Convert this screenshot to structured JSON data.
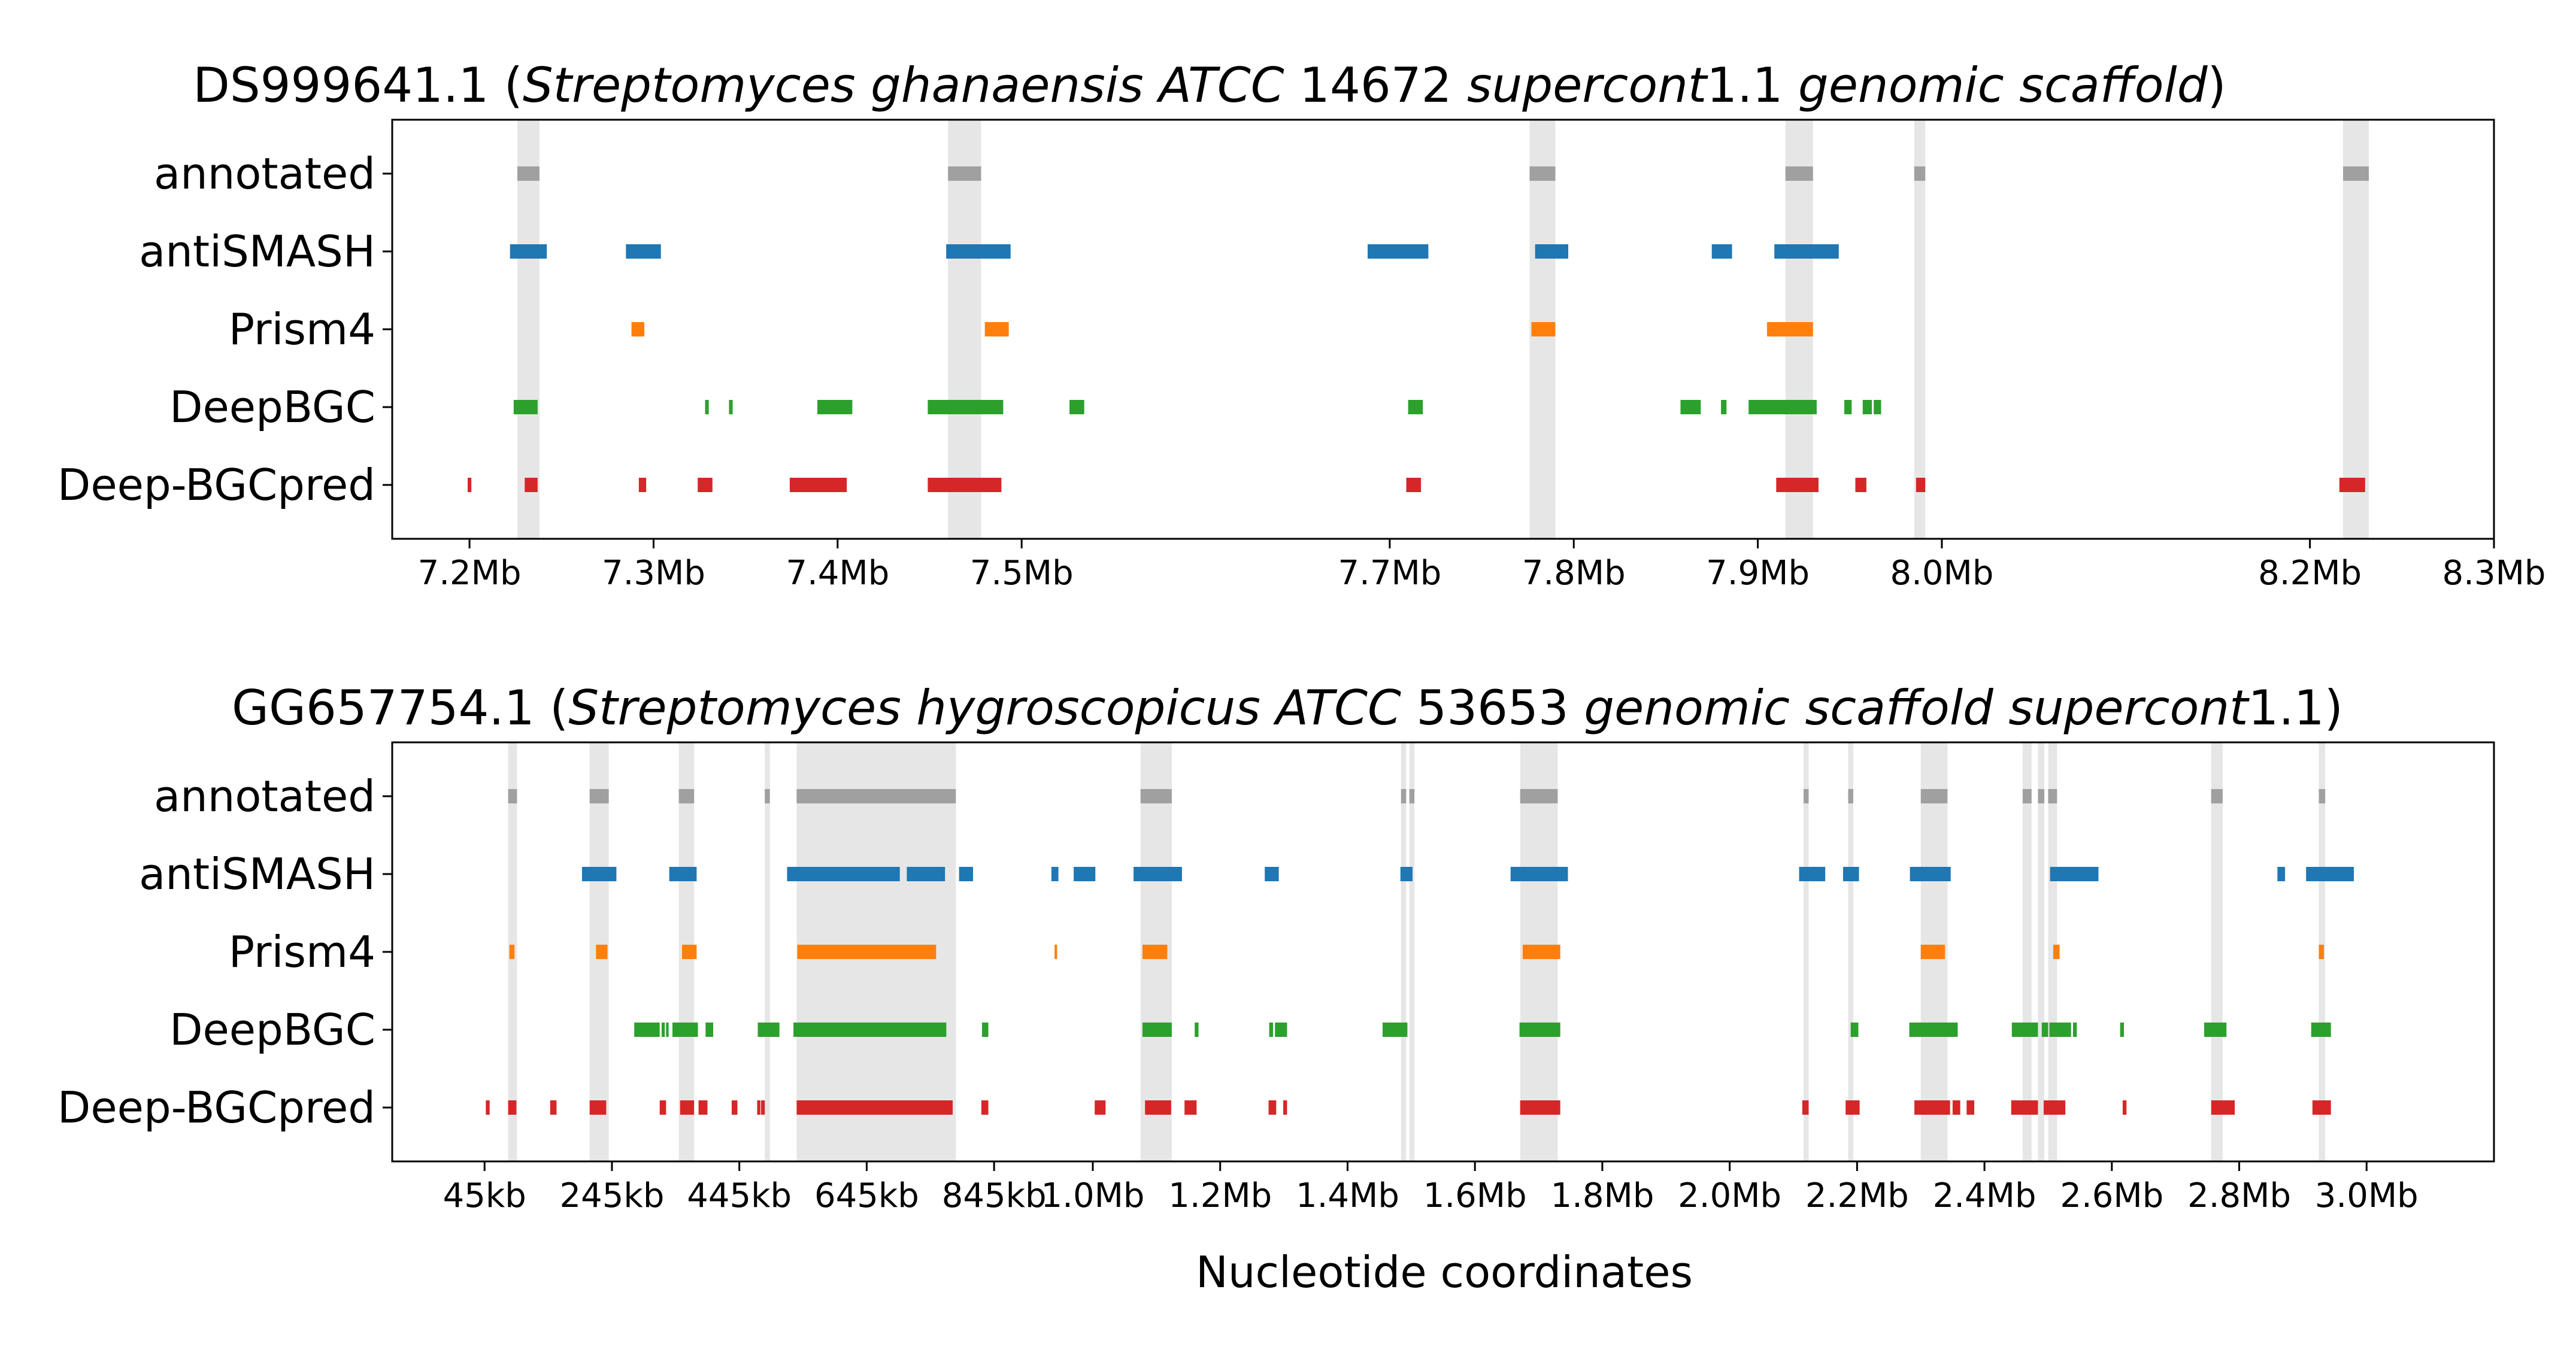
{
  "colors": {
    "annotated": "#a0a0a0",
    "antiSMASH": "#1f77b4",
    "Prism4": "#ff7f0e",
    "DeepBGC": "#2ca02c",
    "Deep-BGCpred": "#d62728",
    "highlight": "#e6e6e6"
  },
  "chart_data": [
    {
      "type": "broken_barh",
      "title": {
        "id": "DS999641.1",
        "paren_open": " (",
        "species": "Streptomyces ghanaensis ATCC",
        "number": " 14672 ",
        "scaffold": "supercont",
        "version": "1.1 ",
        "rest": "genomic scaffold",
        "paren_close": ")"
      },
      "tracks": [
        "annotated",
        "antiSMASH",
        "Prism4",
        "DeepBGC",
        "Deep-BGCpred"
      ],
      "xlim": [
        7158000,
        8300000
      ],
      "xticks": [
        {
          "value": 7200000,
          "label": "7.2Mb"
        },
        {
          "value": 7300000,
          "label": "7.3Mb"
        },
        {
          "value": 7400000,
          "label": "7.4Mb"
        },
        {
          "value": 7500000,
          "label": "7.5Mb"
        },
        {
          "value": 7700000,
          "label": "7.7Mb"
        },
        {
          "value": 7800000,
          "label": "7.8Mb"
        },
        {
          "value": 7900000,
          "label": "7.9Mb"
        },
        {
          "value": 8000000,
          "label": "8.0Mb"
        },
        {
          "value": 8200000,
          "label": "8.2Mb"
        },
        {
          "value": 8300000,
          "label": "8.3Mb"
        }
      ],
      "highlights": [
        [
          7226000,
          7238000
        ],
        [
          7460000,
          7478000
        ],
        [
          7776000,
          7790000
        ],
        [
          7915000,
          7930000
        ],
        [
          7985000,
          7991000
        ],
        [
          8218000,
          8232000
        ]
      ],
      "series": [
        {
          "name": "annotated",
          "segments": [
            [
              7226000,
              7238000
            ],
            [
              7460000,
              7478000
            ],
            [
              7776000,
              7790000
            ],
            [
              7915000,
              7930000
            ],
            [
              7985000,
              7991000
            ],
            [
              8218000,
              8232000
            ]
          ]
        },
        {
          "name": "antiSMASH",
          "segments": [
            [
              7222000,
              7242000
            ],
            [
              7285000,
              7304000
            ],
            [
              7459000,
              7494000
            ],
            [
              7688000,
              7721000
            ],
            [
              7779000,
              7797000
            ],
            [
              7875000,
              7886000
            ],
            [
              7909000,
              7944000
            ]
          ]
        },
        {
          "name": "Prism4",
          "segments": [
            [
              7288000,
              7295000
            ],
            [
              7480000,
              7493000
            ],
            [
              7777000,
              7790000
            ],
            [
              7905000,
              7930000
            ]
          ]
        },
        {
          "name": "DeepBGC",
          "segments": [
            [
              7224000,
              7237000
            ],
            [
              7328000,
              7330000
            ],
            [
              7341000,
              7343000
            ],
            [
              7389000,
              7408000
            ],
            [
              7449000,
              7490000
            ],
            [
              7526000,
              7534000
            ],
            [
              7710000,
              7718000
            ],
            [
              7858000,
              7869000
            ],
            [
              7880000,
              7883000
            ],
            [
              7895000,
              7932000
            ],
            [
              7947000,
              7951000
            ],
            [
              7957000,
              7962000
            ],
            [
              7963000,
              7967000
            ]
          ]
        },
        {
          "name": "Deep-BGCpred",
          "segments": [
            [
              7199000,
              7201000
            ],
            [
              7230000,
              7237000
            ],
            [
              7292000,
              7296000
            ],
            [
              7324000,
              7332000
            ],
            [
              7374000,
              7405000
            ],
            [
              7449000,
              7489000
            ],
            [
              7709000,
              7717000
            ],
            [
              7910000,
              7933000
            ],
            [
              7953000,
              7959000
            ],
            [
              7986000,
              7991000
            ],
            [
              8216000,
              8230000
            ]
          ]
        }
      ]
    },
    {
      "type": "broken_barh",
      "title": {
        "id": "GG657754.1",
        "paren_open": " (",
        "species": "Streptomyces hygroscopicus ATCC",
        "number": " 53653 ",
        "scaffold": "genomic scaffold supercont",
        "version": "1.1",
        "rest": "",
        "paren_close": ")"
      },
      "tracks": [
        "annotated",
        "antiSMASH",
        "Prism4",
        "DeepBGC",
        "Deep-BGCpred"
      ],
      "xlim": [
        -100000,
        3200000
      ],
      "xticks": [
        {
          "value": 45000,
          "label": "45kb"
        },
        {
          "value": 245000,
          "label": "245kb"
        },
        {
          "value": 445000,
          "label": "445kb"
        },
        {
          "value": 645000,
          "label": "645kb"
        },
        {
          "value": 845000,
          "label": "845kb"
        },
        {
          "value": 1000000,
          "label": "1.0Mb"
        },
        {
          "value": 1200000,
          "label": "1.2Mb"
        },
        {
          "value": 1400000,
          "label": "1.4Mb"
        },
        {
          "value": 1600000,
          "label": "1.6Mb"
        },
        {
          "value": 1800000,
          "label": "1.8Mb"
        },
        {
          "value": 2000000,
          "label": "2.0Mb"
        },
        {
          "value": 2200000,
          "label": "2.2Mb"
        },
        {
          "value": 2400000,
          "label": "2.4Mb"
        },
        {
          "value": 2600000,
          "label": "2.6Mb"
        },
        {
          "value": 2800000,
          "label": "2.8Mb"
        },
        {
          "value": 3000000,
          "label": "3.0Mb"
        }
      ],
      "highlights": [
        [
          82000,
          96000
        ],
        [
          210000,
          240000
        ],
        [
          350000,
          374000
        ],
        [
          485000,
          493000
        ],
        [
          535000,
          785000
        ],
        [
          1075000,
          1124000
        ],
        [
          1484000,
          1492000
        ],
        [
          1497000,
          1505000
        ],
        [
          1671000,
          1730000
        ],
        [
          2116000,
          2124000
        ],
        [
          2186000,
          2194000
        ],
        [
          2300000,
          2342000
        ],
        [
          2460000,
          2474000
        ],
        [
          2484000,
          2494000
        ],
        [
          2500000,
          2514000
        ],
        [
          2756000,
          2774000
        ],
        [
          2925000,
          2935000
        ]
      ],
      "series": [
        {
          "name": "annotated",
          "segments": [
            [
              82000,
              96000
            ],
            [
              210000,
              240000
            ],
            [
              350000,
              374000
            ],
            [
              485000,
              493000
            ],
            [
              535000,
              785000
            ],
            [
              1075000,
              1124000
            ],
            [
              1484000,
              1492000
            ],
            [
              1497000,
              1505000
            ],
            [
              1671000,
              1730000
            ],
            [
              2116000,
              2124000
            ],
            [
              2186000,
              2194000
            ],
            [
              2300000,
              2342000
            ],
            [
              2460000,
              2474000
            ],
            [
              2484000,
              2494000
            ],
            [
              2500000,
              2514000
            ],
            [
              2756000,
              2774000
            ],
            [
              2925000,
              2935000
            ]
          ]
        },
        {
          "name": "antiSMASH",
          "segments": [
            [
              198000,
              252000
            ],
            [
              335000,
              378000
            ],
            [
              520000,
              697000
            ],
            [
              708000,
              768000
            ],
            [
              790000,
              812000
            ],
            [
              935000,
              946000
            ],
            [
              970000,
              1004000
            ],
            [
              1064000,
              1140000
            ],
            [
              1270000,
              1292000
            ],
            [
              1483000,
              1502000
            ],
            [
              1656000,
              1746000
            ],
            [
              2109000,
              2150000
            ],
            [
              2178000,
              2203000
            ],
            [
              2283000,
              2347000
            ],
            [
              2503000,
              2579000
            ],
            [
              2860000,
              2872000
            ],
            [
              2905000,
              2980000
            ]
          ]
        },
        {
          "name": "Prism4",
          "segments": [
            [
              84000,
              92000
            ],
            [
              220000,
              238000
            ],
            [
              355000,
              378000
            ],
            [
              536000,
              754000
            ],
            [
              940000,
              944000
            ],
            [
              1078000,
              1117000
            ],
            [
              1675000,
              1734000
            ],
            [
              2300000,
              2338000
            ],
            [
              2508000,
              2518000
            ],
            [
              2925000,
              2933000
            ]
          ]
        },
        {
          "name": "DeepBGC",
          "segments": [
            [
              280000,
              320000
            ],
            [
              323000,
              328000
            ],
            [
              330000,
              334000
            ],
            [
              340000,
              380000
            ],
            [
              392000,
              404000
            ],
            [
              474000,
              508000
            ],
            [
              530000,
              770000
            ],
            [
              826000,
              836000
            ],
            [
              1078000,
              1124000
            ],
            [
              1160000,
              1166000
            ],
            [
              1277000,
              1283000
            ],
            [
              1286000,
              1305000
            ],
            [
              1455000,
              1494000
            ],
            [
              1670000,
              1734000
            ],
            [
              2190000,
              2202000
            ],
            [
              2282000,
              2358000
            ],
            [
              2443000,
              2484000
            ],
            [
              2490000,
              2500000
            ],
            [
              2502000,
              2536000
            ],
            [
              2539000,
              2545000
            ],
            [
              2613000,
              2619000
            ],
            [
              2745000,
              2780000
            ],
            [
              2913000,
              2944000
            ]
          ]
        },
        {
          "name": "Deep-BGCpred",
          "segments": [
            [
              47000,
              53000
            ],
            [
              82000,
              95000
            ],
            [
              148000,
              158000
            ],
            [
              210000,
              236000
            ],
            [
              320000,
              330000
            ],
            [
              352000,
              374000
            ],
            [
              381000,
              395000
            ],
            [
              433000,
              442000
            ],
            [
              473000,
              478000
            ],
            [
              479000,
              485000
            ],
            [
              535000,
              780000
            ],
            [
              825000,
              836000
            ],
            [
              1003000,
              1015000
            ],
            [
              1015000,
              1020000
            ],
            [
              1082000,
              1123000
            ],
            [
              1144000,
              1163000
            ],
            [
              1276000,
              1288000
            ],
            [
              1299000,
              1305000
            ],
            [
              1671000,
              1734000
            ],
            [
              2114000,
              2124000
            ],
            [
              2182000,
              2204000
            ],
            [
              2290000,
              2346000
            ],
            [
              2350000,
              2362000
            ],
            [
              2372000,
              2384000
            ],
            [
              2442000,
              2484000
            ],
            [
              2493000,
              2527000
            ],
            [
              2617000,
              2623000
            ],
            [
              2756000,
              2793000
            ],
            [
              2915000,
              2944000
            ]
          ]
        }
      ]
    }
  ],
  "xlabel": "Nucleotide coordinates"
}
